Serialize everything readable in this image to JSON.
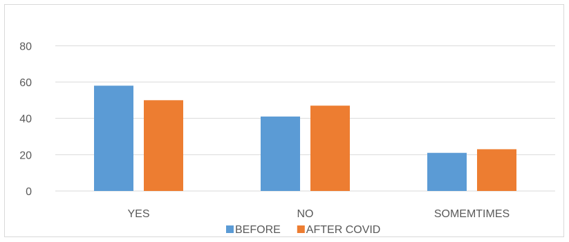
{
  "chart_data": {
    "type": "bar",
    "categories": [
      "YES",
      "NO",
      "SOMEMTIMES"
    ],
    "series": [
      {
        "name": "BEFORE",
        "values": [
          58,
          41,
          21
        ],
        "color": "#5b9bd5"
      },
      {
        "name": "AFTER COVID",
        "values": [
          50,
          47,
          23
        ],
        "color": "#ed7d31"
      }
    ],
    "yticks": [
      "0",
      "20",
      "40",
      "60",
      "80"
    ],
    "ylim": [
      0,
      90
    ],
    "grid": true,
    "legend_position": "bottom"
  }
}
